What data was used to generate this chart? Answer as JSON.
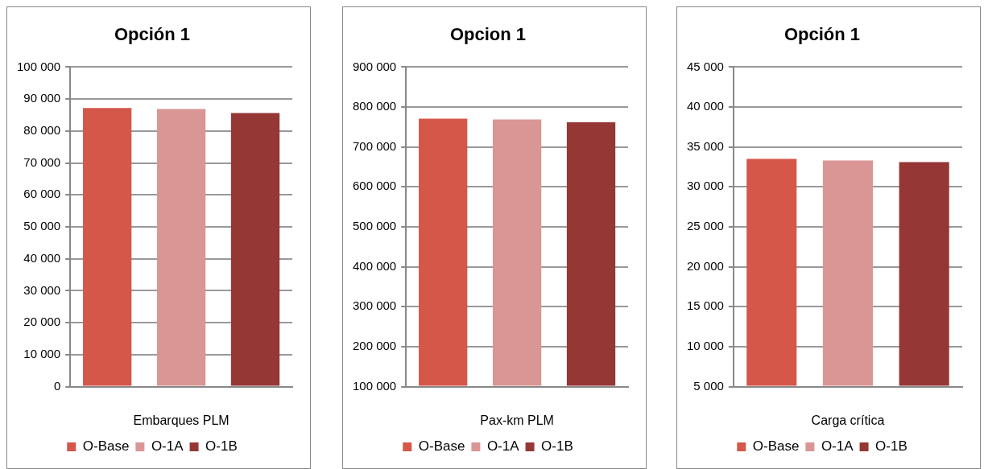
{
  "chart_data": [
    {
      "type": "bar",
      "title": "Opción 1",
      "xlabel": "Embarques PLM",
      "categories": [
        null,
        null,
        null
      ],
      "series": [
        {
          "name": "O-Base",
          "color": "#d4574a",
          "values": [
            87200,
            null,
            null
          ]
        },
        {
          "name": "O-1A",
          "color": "#d99694",
          "values": [
            null,
            86900,
            null
          ]
        },
        {
          "name": "O-1B",
          "color": "#953735",
          "values": [
            null,
            null,
            85600
          ]
        }
      ],
      "ylim": [
        0,
        100000
      ],
      "yticks": [
        {
          "value": 0,
          "label": "0"
        },
        {
          "value": 10000,
          "label": "10 000"
        },
        {
          "value": 20000,
          "label": "20 000"
        },
        {
          "value": 30000,
          "label": "30 000"
        },
        {
          "value": 40000,
          "label": "40 000"
        },
        {
          "value": 50000,
          "label": "50 000"
        },
        {
          "value": 60000,
          "label": "60 000"
        },
        {
          "value": 70000,
          "label": "70 000"
        },
        {
          "value": 80000,
          "label": "80 000"
        },
        {
          "value": 90000,
          "label": "90 000"
        },
        {
          "value": 100000,
          "label": "100 000"
        }
      ],
      "grid": "y",
      "legend": "bottom"
    },
    {
      "type": "bar",
      "title": "Opcion 1",
      "xlabel": "Pax-km PLM",
      "categories": [
        null,
        null,
        null
      ],
      "series": [
        {
          "name": "O-Base",
          "color": "#d4574a",
          "values": [
            771000,
            null,
            null
          ]
        },
        {
          "name": "O-1A",
          "color": "#d99694",
          "values": [
            null,
            769000,
            null
          ]
        },
        {
          "name": "O-1B",
          "color": "#953735",
          "values": [
            null,
            null,
            762000
          ]
        }
      ],
      "ylim": [
        100000,
        900000
      ],
      "yticks": [
        {
          "value": 100000,
          "label": "100 000"
        },
        {
          "value": 200000,
          "label": "200 000"
        },
        {
          "value": 300000,
          "label": "300 000"
        },
        {
          "value": 400000,
          "label": "400 000"
        },
        {
          "value": 500000,
          "label": "500 000"
        },
        {
          "value": 600000,
          "label": "600 000"
        },
        {
          "value": 700000,
          "label": "700 000"
        },
        {
          "value": 800000,
          "label": "800 000"
        },
        {
          "value": 900000,
          "label": "900 000"
        }
      ],
      "grid": "y",
      "legend": "bottom"
    },
    {
      "type": "bar",
      "title": "Opción 1",
      "xlabel": "Carga crítica",
      "categories": [
        null,
        null,
        null
      ],
      "series": [
        {
          "name": "O-Base",
          "color": "#d4574a",
          "values": [
            33500,
            null,
            null
          ]
        },
        {
          "name": "O-1A",
          "color": "#d99694",
          "values": [
            null,
            33300,
            null
          ]
        },
        {
          "name": "O-1B",
          "color": "#953735",
          "values": [
            null,
            null,
            33100
          ]
        }
      ],
      "ylim": [
        5000,
        45000
      ],
      "yticks": [
        {
          "value": 5000,
          "label": "5 000"
        },
        {
          "value": 10000,
          "label": "10 000"
        },
        {
          "value": 15000,
          "label": "15 000"
        },
        {
          "value": 20000,
          "label": "20 000"
        },
        {
          "value": 25000,
          "label": "25 000"
        },
        {
          "value": 30000,
          "label": "30 000"
        },
        {
          "value": 35000,
          "label": "35 000"
        },
        {
          "value": 40000,
          "label": "40 000"
        },
        {
          "value": 45000,
          "label": "45 000"
        }
      ],
      "grid": "y",
      "legend": "bottom"
    }
  ]
}
